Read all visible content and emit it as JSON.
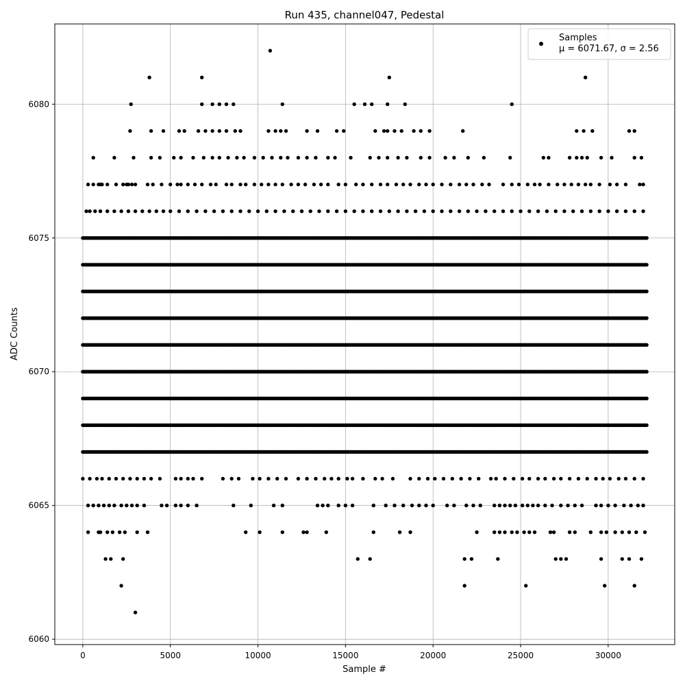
{
  "chart_data": {
    "type": "scatter",
    "title": "Run 435, channel047, Pedestal",
    "xlabel": "Sample #",
    "ylabel": "ADC Counts",
    "xlim": [
      -1600,
      33800
    ],
    "ylim": [
      6059.8,
      6083.0
    ],
    "xticks": [
      0,
      5000,
      10000,
      15000,
      20000,
      25000,
      30000
    ],
    "yticks": [
      6060,
      6065,
      6070,
      6075,
      6080
    ],
    "grid": true,
    "legend": {
      "position": "top-right",
      "label": "Samples",
      "stats_line": "μ = 6071.67, σ = 2.56"
    },
    "series": [
      {
        "name": "Samples",
        "color": "#000000",
        "marker": "circle",
        "n_samples": 32200,
        "levels": [
          {
            "y": 6077,
            "x": [
              300,
              600,
              900,
              1000,
              1100,
              1400,
              1900,
              2300,
              2500,
              2600,
              2800,
              3000,
              3700,
              4000,
              4500,
              5000,
              5400,
              5600,
              6000,
              6400,
              6800,
              7300,
              7600,
              8200,
              8500,
              9000,
              9300,
              9800,
              10200,
              10600,
              11000,
              11400,
              11900,
              12300,
              12700,
              13200,
              13600,
              14000,
              14600,
              15000,
              15600,
              16000,
              16500,
              17000,
              17400,
              17900,
              18300,
              18700,
              19200,
              19600,
              20000,
              20500,
              21000,
              21500,
              21900,
              22300,
              22800,
              23200,
              24000,
              24500,
              24900,
              25400,
              25800,
              26100,
              26600,
              27100,
              27500,
              27900,
              28300,
              28700,
              29000,
              29500,
              30100,
              30500,
              31000,
              31800,
              32000
            ]
          },
          {
            "y": 6076,
            "x": [
              200,
              400,
              700,
              1000,
              1400,
              1800,
              2200,
              2600,
              3000,
              3400,
              3800,
              4200,
              4600,
              5000,
              5500,
              6000,
              6500,
              7000,
              7500,
              8000,
              8500,
              9000,
              9500,
              10000,
              10500,
              11000,
              11500,
              12000,
              12500,
              13000,
              13500,
              14000,
              14500,
              15000,
              15500,
              16000,
              16500,
              17000,
              17500,
              18000,
              18500,
              19000,
              19500,
              20000,
              20500,
              21000,
              21500,
              22000,
              22500,
              23000,
              23500,
              24000,
              24500,
              25000,
              25500,
              26000,
              26500,
              27000,
              27500,
              28000,
              28500,
              29000,
              29500,
              30000,
              30500,
              31000,
              31500,
              32000
            ]
          },
          {
            "y": 6078,
            "x": [
              600,
              1800,
              2900,
              3900,
              4400,
              5200,
              5600,
              6300,
              6900,
              7400,
              7800,
              8300,
              8800,
              9200,
              9800,
              10300,
              10800,
              11300,
              11700,
              12300,
              12800,
              13300,
              14000,
              14400,
              15300,
              16400,
              16900,
              17400,
              18000,
              18500,
              19300,
              19800,
              20700,
              21200,
              22000,
              22900,
              24400,
              26300,
              26600,
              27800,
              28200,
              28500,
              28800,
              29600,
              30200,
              31500,
              31900
            ]
          },
          {
            "y": 6079,
            "x": [
              2700,
              3900,
              4600,
              5500,
              5800,
              6600,
              7000,
              7400,
              7800,
              8200,
              8700,
              9000,
              10600,
              11000,
              11300,
              11600,
              12800,
              13400,
              14500,
              14900,
              16700,
              17200,
              17400,
              17800,
              18200,
              18900,
              19300,
              19800,
              21700,
              28200,
              28600,
              29100,
              31200,
              31500
            ]
          },
          {
            "y": 6080,
            "x": [
              2750,
              6800,
              7400,
              7800,
              8200,
              8600,
              11400,
              15500,
              16100,
              16500,
              17400,
              18400,
              24500
            ]
          },
          {
            "y": 6081,
            "x": [
              3800,
              6800,
              17500,
              28700
            ]
          },
          {
            "y": 6082,
            "x": [
              10700
            ]
          },
          {
            "y": 6066,
            "x": [
              0,
              400,
              800,
              1100,
              1500,
              1900,
              2300,
              2700,
              3100,
              3500,
              3900,
              4400,
              5300,
              5600,
              6000,
              6300,
              6800,
              8000,
              8500,
              8900,
              9700,
              10100,
              10600,
              11100,
              11600,
              12300,
              12800,
              13300,
              13800,
              14200,
              14600,
              15100,
              15400,
              16000,
              16700,
              17100,
              17700,
              18700,
              19200,
              19700,
              20100,
              20600,
              21100,
              21600,
              22100,
              22600,
              23300,
              23600,
              24100,
              24600,
              25100,
              25500,
              26000,
              26400,
              26900,
              27300,
              27800,
              28300,
              28800,
              29300,
              29700,
              30100,
              30600,
              31000,
              31500,
              32000
            ]
          },
          {
            "y": 6065,
            "x": [
              300,
              600,
              900,
              1200,
              1500,
              1800,
              2200,
              2500,
              2800,
              3100,
              3500,
              4500,
              4800,
              5300,
              5600,
              6000,
              6500,
              8600,
              9600,
              10900,
              11400,
              13400,
              13700,
              14000,
              14600,
              15000,
              15400,
              16600,
              17300,
              17800,
              18300,
              18800,
              19200,
              19600,
              20000,
              20800,
              21200,
              21900,
              22300,
              22700,
              23500,
              23800,
              24100,
              24400,
              24700,
              25100,
              25400,
              25700,
              26000,
              26400,
              26800,
              27300,
              27700,
              28100,
              28500,
              29300,
              29600,
              30000,
              30400,
              30900,
              31300,
              31700,
              32000
            ]
          },
          {
            "y": 6064,
            "x": [
              300,
              900,
              1000,
              1400,
              1700,
              2100,
              2400,
              3100,
              3700,
              9300,
              10100,
              11400,
              12600,
              12800,
              13900,
              16600,
              18100,
              18700,
              22500,
              23500,
              23800,
              24100,
              24500,
              24800,
              25200,
              25500,
              25800,
              26700,
              26900,
              27800,
              28100,
              29000,
              29600,
              29900,
              30400,
              30800,
              31200,
              31600,
              32100
            ]
          },
          {
            "y": 6063,
            "x": [
              1300,
              1600,
              2300,
              15700,
              16400,
              21800,
              22200,
              23700,
              27000,
              27300,
              27600,
              29600,
              30800,
              31200,
              31900
            ]
          },
          {
            "y": 6062,
            "x": [
              2200,
              21800,
              25300,
              29800,
              31500
            ]
          },
          {
            "y": 6061,
            "x": [
              3000
            ]
          }
        ],
        "dense_levels": [
          6067,
          6068,
          6069,
          6070,
          6071,
          6072,
          6073,
          6074,
          6075
        ]
      }
    ]
  }
}
